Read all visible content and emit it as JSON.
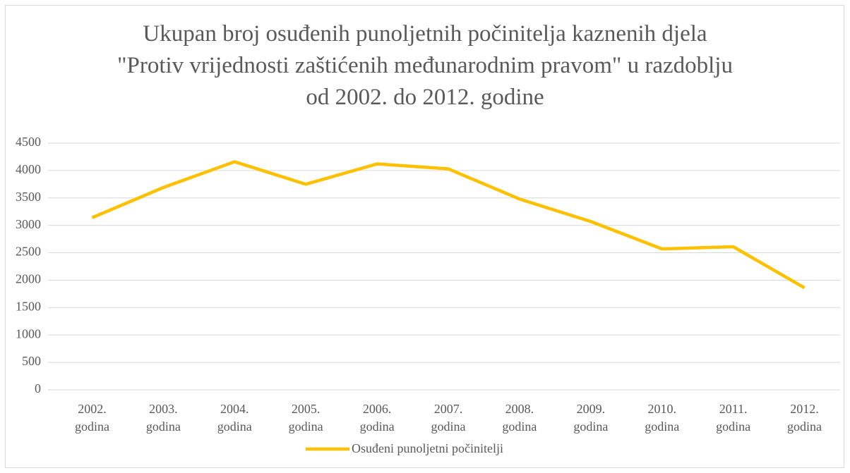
{
  "chart_data": {
    "type": "line",
    "title": "Ukupan broj osuđenih punoljetnih počinitelja kaznenih djela \"Protiv vrijednosti zaštićenih međunarodnim pravom\" u razdoblju od 2002. do 2012. godine",
    "categories": [
      "2002. godina",
      "2003. godina",
      "2004. godina",
      "2005. godina",
      "2006. godina",
      "2007. godina",
      "2008. godina",
      "2009. godina",
      "2010. godina",
      "2011. godina",
      "2012. godina"
    ],
    "series": [
      {
        "name": "Osuđeni punoljetni počinitelji",
        "color": "#ffc000",
        "values": [
          3140,
          3690,
          4160,
          3750,
          4120,
          4030,
          3480,
          3070,
          2570,
          2610,
          1860
        ]
      }
    ],
    "ylim": [
      0,
      4500
    ],
    "yticks": [
      0,
      500,
      1000,
      1500,
      2000,
      2500,
      3000,
      3500,
      4000,
      4500
    ],
    "grid": true,
    "legend": "bottom"
  }
}
